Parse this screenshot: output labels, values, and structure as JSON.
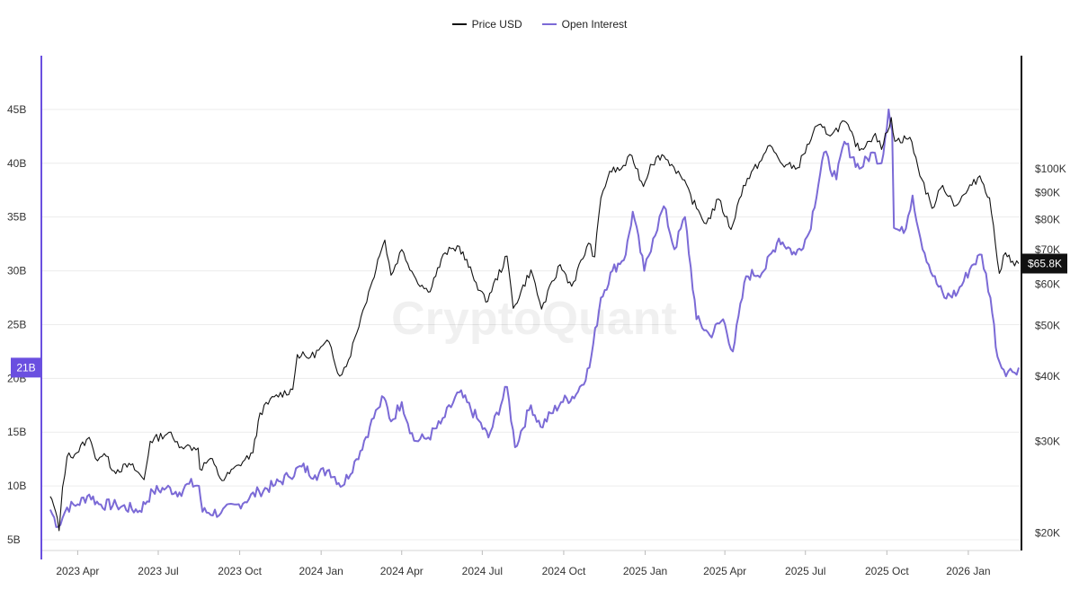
{
  "chart_data": {
    "type": "line",
    "watermark": "CryptoQuant",
    "colors": {
      "price": "#111111",
      "open_interest": "#7b6ad6",
      "oi_axis": "#6a4fe0",
      "price_axis": "#111111"
    },
    "series": [
      {
        "name": "Price USD",
        "axis": "right",
        "points": [
          [
            "2023-03-01",
            23500
          ],
          [
            "2023-03-07",
            22000
          ],
          [
            "2023-03-11",
            20200
          ],
          [
            "2023-03-15",
            24500
          ],
          [
            "2023-03-20",
            28000
          ],
          [
            "2023-03-31",
            28500
          ],
          [
            "2023-04-11",
            30200
          ],
          [
            "2023-04-14",
            30500
          ],
          [
            "2023-04-21",
            27800
          ],
          [
            "2023-05-01",
            28400
          ],
          [
            "2023-05-12",
            26300
          ],
          [
            "2023-05-31",
            27000
          ],
          [
            "2023-06-15",
            25300
          ],
          [
            "2023-06-22",
            30000
          ],
          [
            "2023-07-13",
            31200
          ],
          [
            "2023-07-20",
            29900
          ],
          [
            "2023-08-01",
            29300
          ],
          [
            "2023-08-15",
            29100
          ],
          [
            "2023-08-17",
            26500
          ],
          [
            "2023-08-29",
            27800
          ],
          [
            "2023-09-11",
            25200
          ],
          [
            "2023-09-30",
            27000
          ],
          [
            "2023-10-16",
            28500
          ],
          [
            "2023-10-24",
            34000
          ],
          [
            "2023-11-09",
            36500
          ],
          [
            "2023-11-30",
            37700
          ],
          [
            "2023-12-05",
            44000
          ],
          [
            "2023-12-20",
            43500
          ],
          [
            "2024-01-10",
            46500
          ],
          [
            "2024-01-22",
            40000
          ],
          [
            "2024-02-01",
            43000
          ],
          [
            "2024-02-15",
            52000
          ],
          [
            "2024-02-28",
            61000
          ],
          [
            "2024-03-05",
            67000
          ],
          [
            "2024-03-13",
            73000
          ],
          [
            "2024-03-20",
            62500
          ],
          [
            "2024-04-01",
            70000
          ],
          [
            "2024-04-17",
            61500
          ],
          [
            "2024-05-01",
            58000
          ],
          [
            "2024-05-20",
            69000
          ],
          [
            "2024-06-05",
            71000
          ],
          [
            "2024-06-24",
            60500
          ],
          [
            "2024-07-05",
            55500
          ],
          [
            "2024-07-29",
            68000
          ],
          [
            "2024-08-05",
            54000
          ],
          [
            "2024-08-25",
            64000
          ],
          [
            "2024-09-06",
            53800
          ],
          [
            "2024-09-27",
            65500
          ],
          [
            "2024-10-10",
            59500
          ],
          [
            "2024-10-29",
            72000
          ],
          [
            "2024-11-05",
            67800
          ],
          [
            "2024-11-12",
            88000
          ],
          [
            "2024-11-22",
            99000
          ],
          [
            "2024-12-05",
            100000
          ],
          [
            "2024-12-17",
            106000
          ],
          [
            "2024-12-30",
            92500
          ],
          [
            "2025-01-07",
            102000
          ],
          [
            "2025-01-20",
            106500
          ],
          [
            "2025-01-31",
            102000
          ],
          [
            "2025-02-10",
            97000
          ],
          [
            "2025-02-28",
            84000
          ],
          [
            "2025-03-11",
            78500
          ],
          [
            "2025-03-25",
            87500
          ],
          [
            "2025-04-08",
            76500
          ],
          [
            "2025-04-22",
            93000
          ],
          [
            "2025-05-10",
            103000
          ],
          [
            "2025-05-22",
            111000
          ],
          [
            "2025-06-05",
            102000
          ],
          [
            "2025-06-22",
            100500
          ],
          [
            "2025-07-14",
            121000
          ],
          [
            "2025-07-31",
            116500
          ],
          [
            "2025-08-14",
            123500
          ],
          [
            "2025-08-31",
            108500
          ],
          [
            "2025-09-18",
            117000
          ],
          [
            "2025-09-25",
            109000
          ],
          [
            "2025-10-06",
            125500
          ],
          [
            "2025-10-10",
            113000
          ],
          [
            "2025-10-27",
            115000
          ],
          [
            "2025-11-05",
            101000
          ],
          [
            "2025-11-21",
            84000
          ],
          [
            "2025-12-03",
            93000
          ],
          [
            "2025-12-18",
            85000
          ],
          [
            "2026-01-05",
            93000
          ],
          [
            "2026-01-14",
            97000
          ],
          [
            "2026-01-25",
            88000
          ],
          [
            "2026-02-05",
            63000
          ],
          [
            "2026-02-12",
            69000
          ],
          [
            "2026-02-20",
            66500
          ],
          [
            "2026-02-27",
            65800
          ]
        ]
      },
      {
        "name": "Open Interest",
        "axis": "left",
        "points": [
          [
            "2023-03-01",
            7.8
          ],
          [
            "2023-03-10",
            6.2
          ],
          [
            "2023-03-20",
            8.0
          ],
          [
            "2023-04-01",
            8.3
          ],
          [
            "2023-04-14",
            9.2
          ],
          [
            "2023-04-25",
            8.3
          ],
          [
            "2023-05-15",
            8.2
          ],
          [
            "2023-06-10",
            7.7
          ],
          [
            "2023-06-25",
            9.5
          ],
          [
            "2023-07-10",
            9.8
          ],
          [
            "2023-07-25",
            9.4
          ],
          [
            "2023-08-05",
            10.2
          ],
          [
            "2023-08-16",
            10.0
          ],
          [
            "2023-08-20",
            7.6
          ],
          [
            "2023-09-10",
            7.5
          ],
          [
            "2023-09-30",
            8.3
          ],
          [
            "2023-10-23",
            9.5
          ],
          [
            "2023-11-10",
            10.1
          ],
          [
            "2023-11-25",
            10.9
          ],
          [
            "2023-12-10",
            11.8
          ],
          [
            "2023-12-25",
            11.0
          ],
          [
            "2024-01-10",
            11.5
          ],
          [
            "2024-01-25",
            10.0
          ],
          [
            "2024-02-10",
            12.5
          ],
          [
            "2024-02-25",
            15.5
          ],
          [
            "2024-03-05",
            17.2
          ],
          [
            "2024-03-12",
            18.2
          ],
          [
            "2024-03-20",
            16.0
          ],
          [
            "2024-04-01",
            17.8
          ],
          [
            "2024-04-15",
            14.2
          ],
          [
            "2024-05-01",
            14.5
          ],
          [
            "2024-05-15",
            15.8
          ],
          [
            "2024-06-05",
            18.7
          ],
          [
            "2024-06-25",
            16.3
          ],
          [
            "2024-07-08",
            14.5
          ],
          [
            "2024-07-29",
            19.2
          ],
          [
            "2024-08-07",
            13.6
          ],
          [
            "2024-08-25",
            17.5
          ],
          [
            "2024-09-05",
            15.5
          ],
          [
            "2024-09-28",
            17.8
          ],
          [
            "2024-10-15",
            18.5
          ],
          [
            "2024-10-30",
            21.0
          ],
          [
            "2024-11-12",
            27.5
          ],
          [
            "2024-11-25",
            30.0
          ],
          [
            "2024-12-10",
            31.5
          ],
          [
            "2024-12-18",
            35.5
          ],
          [
            "2024-12-31",
            30.0
          ],
          [
            "2025-01-10",
            33.0
          ],
          [
            "2025-01-22",
            36.0
          ],
          [
            "2025-02-03",
            32.0
          ],
          [
            "2025-02-15",
            35.0
          ],
          [
            "2025-02-28",
            25.5
          ],
          [
            "2025-03-15",
            24.0
          ],
          [
            "2025-03-30",
            25.5
          ],
          [
            "2025-04-10",
            22.5
          ],
          [
            "2025-04-25",
            29.5
          ],
          [
            "2025-05-15",
            30.0
          ],
          [
            "2025-06-01",
            33.0
          ],
          [
            "2025-06-20",
            31.5
          ],
          [
            "2025-07-05",
            33.5
          ],
          [
            "2025-07-22",
            41.0
          ],
          [
            "2025-08-05",
            38.5
          ],
          [
            "2025-08-14",
            42.0
          ],
          [
            "2025-08-31",
            39.5
          ],
          [
            "2025-09-15",
            41.0
          ],
          [
            "2025-09-25",
            40.0
          ],
          [
            "2025-10-03",
            45.0
          ],
          [
            "2025-10-07",
            43.0
          ],
          [
            "2025-10-09",
            34.0
          ],
          [
            "2025-10-20",
            33.5
          ],
          [
            "2025-10-30",
            37.0
          ],
          [
            "2025-11-08",
            33.0
          ],
          [
            "2025-11-22",
            29.5
          ],
          [
            "2025-12-05",
            27.5
          ],
          [
            "2025-12-20",
            28.0
          ],
          [
            "2026-01-05",
            30.5
          ],
          [
            "2026-01-16",
            31.5
          ],
          [
            "2026-01-26",
            27.5
          ],
          [
            "2026-02-03",
            22.0
          ],
          [
            "2026-02-10",
            20.8
          ],
          [
            "2026-02-20",
            20.6
          ],
          [
            "2026-02-27",
            21.0
          ]
        ]
      }
    ],
    "y_left": {
      "ticks": [
        5,
        10,
        15,
        20,
        25,
        30,
        35,
        40,
        45
      ],
      "tick_labels": [
        "5B",
        "10B",
        "15B",
        "20B",
        "25B",
        "30B",
        "35B",
        "40B",
        "45B"
      ],
      "ylim": [
        4,
        50
      ],
      "current_label": "21B",
      "current_value": 21
    },
    "y_right": {
      "scale": "log",
      "ticks": [
        20000,
        30000,
        40000,
        50000,
        60000,
        70000,
        80000,
        90000,
        100000
      ],
      "tick_labels": [
        "$20K",
        "$30K",
        "$40K",
        "$50K",
        "$60K",
        "$70K",
        "$80K",
        "$90K",
        "$100K"
      ],
      "ylim": [
        18500,
        165000
      ],
      "current_label": "$65.8K",
      "current_value": 65800
    },
    "x_axis": {
      "range": [
        "2023-02-20",
        "2026-03-01"
      ],
      "ticks": [
        "2023-04-01",
        "2023-07-01",
        "2023-10-01",
        "2024-01-01",
        "2024-04-01",
        "2024-07-01",
        "2024-10-01",
        "2025-01-01",
        "2025-04-01",
        "2025-07-01",
        "2025-10-01",
        "2026-01-01"
      ],
      "tick_labels": [
        "2023 Apr",
        "2023 Jul",
        "2023 Oct",
        "2024 Jan",
        "2024 Apr",
        "2024 Jul",
        "2024 Oct",
        "2025 Jan",
        "2025 Apr",
        "2025 Jul",
        "2025 Oct",
        "2026 Jan"
      ]
    },
    "grid": true,
    "legend": "top-center"
  }
}
